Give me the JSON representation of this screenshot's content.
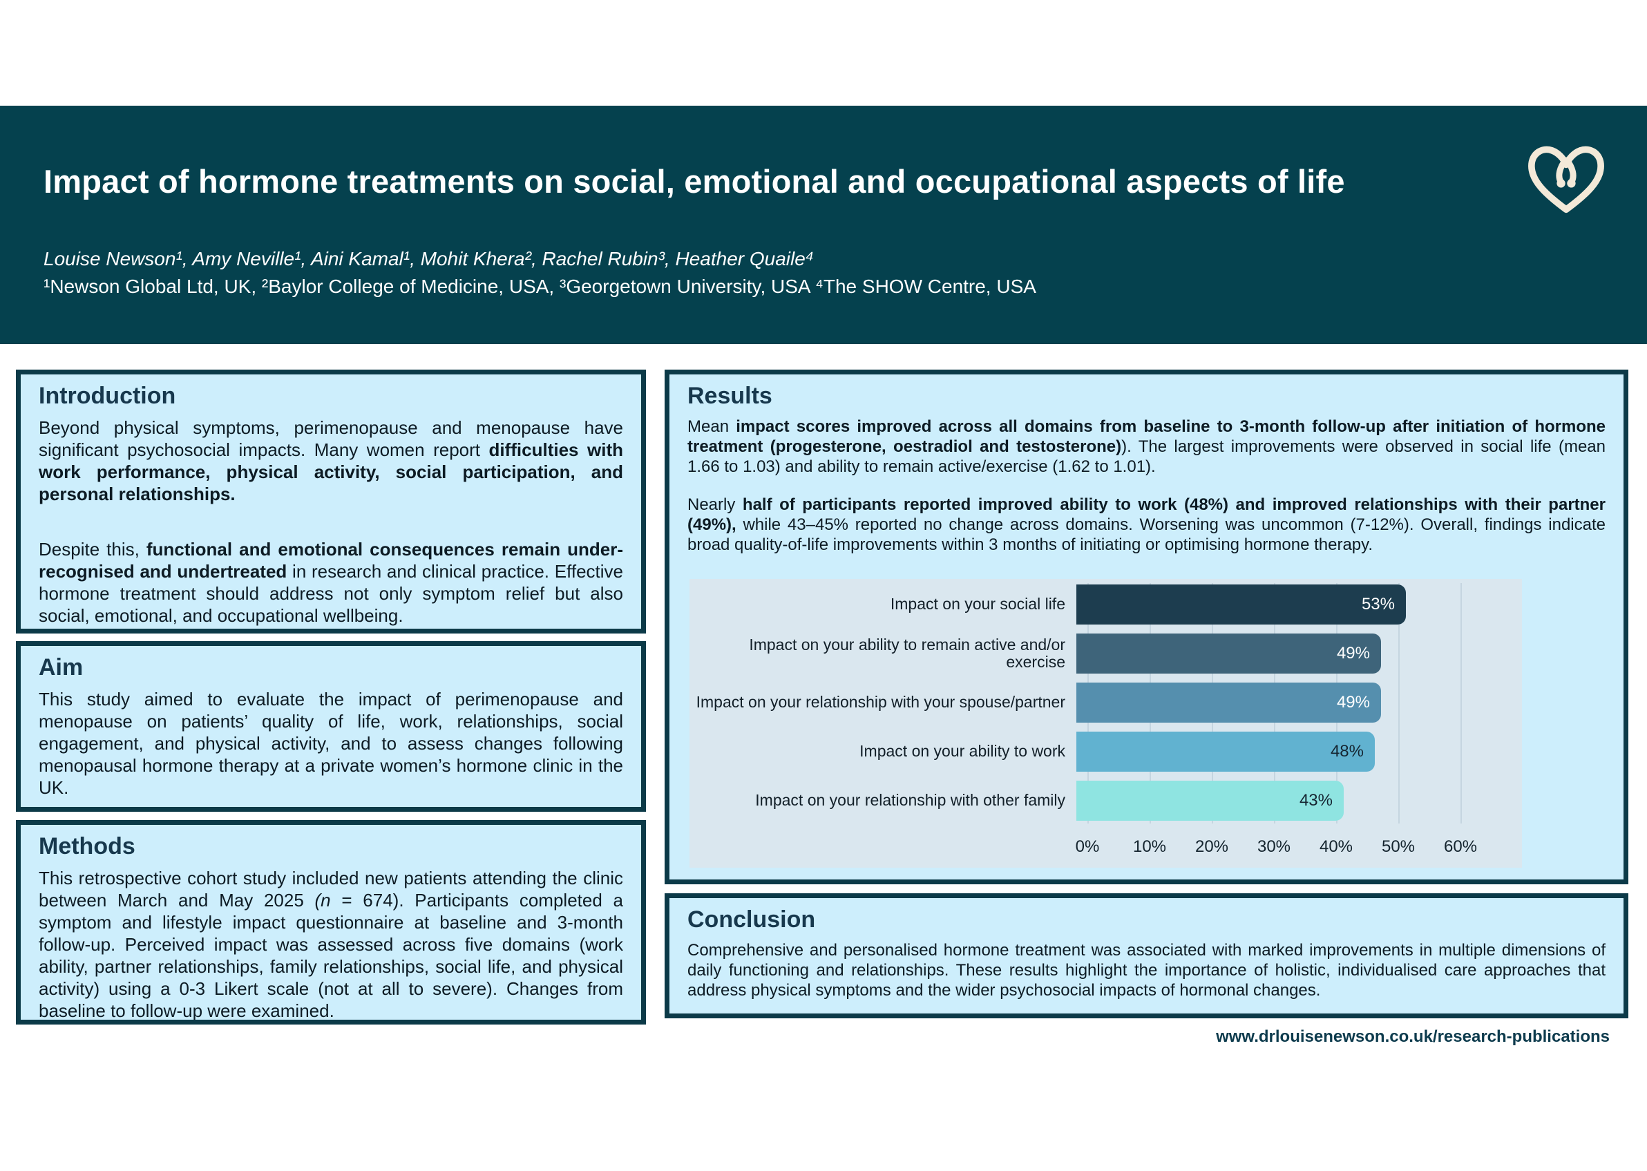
{
  "theme": {
    "band": "#05414e",
    "logo_cream": "#f3e9d8",
    "box_bg": "#cdeefc",
    "box_border": "#0c3a48",
    "heading": "#17384d",
    "text": "#0d1b24",
    "plot_bg": "#dae7ef",
    "grid_line": "#c5d5e0",
    "footer": "#0d3b4d"
  },
  "header": {
    "title": "Impact of hormone treatments on social, emotional and occupational aspects of life",
    "authors": "Louise Newson¹, Amy Neville¹, Aini Kamal¹, Mohit Khera², Rachel Rubin³, Heather Quaile⁴",
    "affiliations": "¹Newson Global Ltd, UK, ²Baylor College of Medicine, USA, ³Georgetown University, USA ⁴The SHOW Centre, USA",
    "logo_name": "newson-heart-logo"
  },
  "sections": {
    "introduction": {
      "heading": "Introduction",
      "paragraphs": [
        [
          {
            "t": "Beyond physical symptoms, perimenopause and menopause have significant psychosocial impacts. Many women report "
          },
          {
            "t": "difficulties with work performance, physical activity, social participation, and personal relationships.",
            "b": true
          }
        ],
        [
          {
            "t": "Despite this, "
          },
          {
            "t": "functional and emotional consequences remain under-recognised and undertreated",
            "b": true
          },
          {
            "t": " in research and clinical practice. Effective hormone treatment should address not only symptom relief but also social, emotional, and occupational wellbeing."
          }
        ]
      ]
    },
    "aim": {
      "heading": "Aim",
      "paragraphs": [
        [
          {
            "t": "This study aimed to evaluate the impact of perimenopause and menopause on patients’ quality of life, work, relationships, social engagement, and physical activity, and to assess changes following menopausal hormone therapy at a private women’s hormone clinic in the UK."
          }
        ]
      ]
    },
    "methods": {
      "heading": "Methods",
      "paragraphs": [
        [
          {
            "t": "This retrospective cohort study included new patients attending the clinic between March and May 2025 "
          },
          {
            "t": "(n",
            "i": true
          },
          {
            "t": " = 674). Participants completed a symptom and lifestyle impact questionnaire at baseline and 3-month follow-up. Perceived impact was assessed across five domains (work ability, partner relationships, family relationships, social life, and physical activity) using a 0-3 Likert scale (not at all to severe). Changes from baseline to follow-up were examined."
          }
        ]
      ]
    },
    "results": {
      "heading": "Results",
      "paragraphs": [
        [
          {
            "t": "Mean "
          },
          {
            "t": "impact scores improved across all domains from baseline to 3-month follow-up after initiation of hormone treatment (progesterone, oestradiol and testosterone)",
            "b": true
          },
          {
            "t": "). The largest improvements were observed in social life (mean 1.66 to 1.03) and ability to remain active/exercise (1.62 to 1.01)."
          }
        ],
        [
          {
            "t": "Nearly "
          },
          {
            "t": "half of participants reported improved ability to work (48%) and improved relationships with their partner (49%),",
            "b": true
          },
          {
            "t": " while 43–45% reported no change across domains. Worsening was uncommon (7-12%). Overall, findings indicate broad quality-of-life improvements within 3 months of initiating or optimising hormone therapy."
          }
        ]
      ]
    },
    "conclusion": {
      "heading": "Conclusion",
      "paragraphs": [
        [
          {
            "t": "Comprehensive and personalised hormone treatment was associated with marked improvements in multiple dimensions of daily functioning and relationships. These results highlight the importance of holistic, individualised care approaches that address physical symptoms and the wider psychosocial impacts of hormonal changes."
          }
        ]
      ]
    }
  },
  "chart_data": {
    "type": "bar",
    "orientation": "horizontal",
    "title": "",
    "xlabel": "",
    "ylabel": "",
    "categories": [
      "Impact on your social life",
      "Impact on your ability to remain active and/or exercise",
      "Impact on your relationship with your spouse/partner",
      "Impact on your ability to work",
      "Impact on your relationship with other family"
    ],
    "values": [
      53,
      49,
      49,
      48,
      43
    ],
    "value_labels": [
      "53%",
      "49%",
      "49%",
      "48%",
      "43%"
    ],
    "bar_colors": [
      "#1d3d4f",
      "#3e647a",
      "#558fae",
      "#61b2d0",
      "#8fe4e1"
    ],
    "value_label_colors": [
      "#ffffff",
      "#ffffff",
      "#ffffff",
      "#152531",
      "#152531"
    ],
    "xlim": [
      0,
      60
    ],
    "x_ticks": [
      "0%",
      "10%",
      "20%",
      "30%",
      "40%",
      "50%",
      "60%"
    ],
    "grid": true,
    "legend": "none",
    "plot_background": "#dae7ef"
  },
  "footer": {
    "url": "www.drlouisenewson.co.uk/research-publications"
  }
}
